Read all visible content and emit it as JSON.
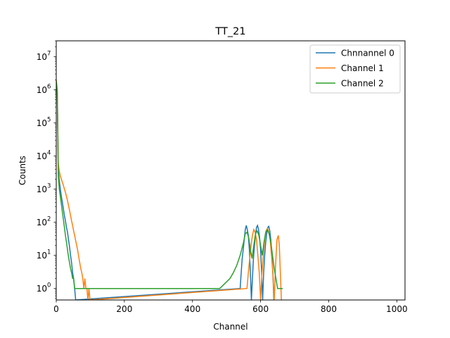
{
  "chart_data": {
    "type": "line",
    "title": "TT_21",
    "xlabel": "Channel",
    "ylabel": "Counts",
    "xlim": [
      0,
      1024
    ],
    "ylim": [
      0.45,
      30000000
    ],
    "yscale": "log",
    "x_ticks": [
      0,
      200,
      400,
      600,
      800,
      1000
    ],
    "x_tick_labels": [
      "0",
      "200",
      "400",
      "600",
      "800",
      "1000"
    ],
    "y_ticks": [
      1,
      10,
      100,
      1000,
      10000,
      100000,
      1000000,
      10000000
    ],
    "y_tick_labels": [
      "10",
      "10",
      "10",
      "10",
      "10",
      "10",
      "10",
      "10"
    ],
    "y_tick_exponents": [
      "0",
      "1",
      "2",
      "3",
      "4",
      "5",
      "6",
      "7"
    ],
    "grid": false,
    "legend_position": "top-right",
    "series": [
      {
        "name": "Chnnannel 0",
        "color": "#1f77b4",
        "points": [
          [
            0,
            1600000
          ],
          [
            3,
            900000
          ],
          [
            6,
            4000
          ],
          [
            9,
            1800
          ],
          [
            12,
            1000
          ],
          [
            15,
            600
          ],
          [
            18,
            400
          ],
          [
            21,
            250
          ],
          [
            24,
            160
          ],
          [
            27,
            110
          ],
          [
            30,
            70
          ],
          [
            33,
            50
          ],
          [
            36,
            30
          ],
          [
            39,
            18
          ],
          [
            42,
            10
          ],
          [
            45,
            6
          ],
          [
            48,
            3
          ],
          [
            51,
            2
          ],
          [
            54,
            1
          ],
          [
            57,
            0.45
          ],
          [
            540,
            1
          ],
          [
            543,
            3
          ],
          [
            546,
            8
          ],
          [
            549,
            15
          ],
          [
            552,
            30
          ],
          [
            555,
            60
          ],
          [
            558,
            80
          ],
          [
            561,
            60
          ],
          [
            564,
            40
          ],
          [
            567,
            15
          ],
          [
            570,
            3
          ],
          [
            573,
            0.45
          ],
          [
            576,
            2
          ],
          [
            579,
            8
          ],
          [
            582,
            20
          ],
          [
            585,
            40
          ],
          [
            588,
            70
          ],
          [
            591,
            80
          ],
          [
            594,
            60
          ],
          [
            597,
            35
          ],
          [
            600,
            15
          ],
          [
            603,
            3
          ],
          [
            606,
            0.45
          ],
          [
            609,
            3
          ],
          [
            612,
            10
          ],
          [
            615,
            25
          ],
          [
            618,
            45
          ],
          [
            621,
            70
          ],
          [
            624,
            75
          ],
          [
            627,
            55
          ],
          [
            630,
            30
          ],
          [
            633,
            10
          ],
          [
            636,
            3
          ],
          [
            639,
            0.45
          ]
        ]
      },
      {
        "name": "Channel 1",
        "color": "#ff7f0e",
        "points": [
          [
            0,
            2000000
          ],
          [
            3,
            1000000
          ],
          [
            6,
            6000
          ],
          [
            9,
            3500
          ],
          [
            12,
            2500
          ],
          [
            15,
            2000
          ],
          [
            18,
            1600
          ],
          [
            21,
            1300
          ],
          [
            24,
            1000
          ],
          [
            27,
            800
          ],
          [
            30,
            600
          ],
          [
            33,
            450
          ],
          [
            36,
            320
          ],
          [
            39,
            230
          ],
          [
            42,
            160
          ],
          [
            45,
            110
          ],
          [
            48,
            80
          ],
          [
            51,
            55
          ],
          [
            54,
            40
          ],
          [
            57,
            28
          ],
          [
            60,
            20
          ],
          [
            63,
            14
          ],
          [
            66,
            9
          ],
          [
            69,
            6
          ],
          [
            72,
            4
          ],
          [
            75,
            3
          ],
          [
            78,
            2
          ],
          [
            81,
            1
          ],
          [
            84,
            2
          ],
          [
            87,
            1
          ],
          [
            90,
            1
          ],
          [
            93,
            0.45
          ],
          [
            96,
            1
          ],
          [
            99,
            0.45
          ],
          [
            560,
            1
          ],
          [
            564,
            3
          ],
          [
            568,
            8
          ],
          [
            572,
            20
          ],
          [
            576,
            40
          ],
          [
            580,
            60
          ],
          [
            584,
            50
          ],
          [
            588,
            30
          ],
          [
            592,
            10
          ],
          [
            596,
            3
          ],
          [
            600,
            0.45
          ],
          [
            604,
            3
          ],
          [
            608,
            10
          ],
          [
            612,
            30
          ],
          [
            616,
            55
          ],
          [
            620,
            65
          ],
          [
            624,
            50
          ],
          [
            628,
            30
          ],
          [
            632,
            10
          ],
          [
            636,
            3
          ],
          [
            640,
            0.45
          ],
          [
            644,
            5
          ],
          [
            648,
            30
          ],
          [
            652,
            40
          ],
          [
            655,
            20
          ],
          [
            658,
            3
          ],
          [
            661,
            0.45
          ]
        ]
      },
      {
        "name": "Channel 2",
        "color": "#2ca02c",
        "points": [
          [
            0,
            1800000
          ],
          [
            3,
            800000
          ],
          [
            6,
            2500
          ],
          [
            9,
            1000
          ],
          [
            12,
            600
          ],
          [
            15,
            350
          ],
          [
            18,
            200
          ],
          [
            21,
            120
          ],
          [
            24,
            70
          ],
          [
            27,
            40
          ],
          [
            30,
            25
          ],
          [
            33,
            15
          ],
          [
            36,
            9
          ],
          [
            39,
            6
          ],
          [
            42,
            4
          ],
          [
            45,
            3
          ],
          [
            48,
            2
          ],
          [
            51,
            2
          ],
          [
            54,
            1
          ],
          [
            60,
            1
          ],
          [
            70,
            1
          ],
          [
            80,
            1
          ],
          [
            100,
            1
          ],
          [
            130,
            1
          ],
          [
            160,
            1
          ],
          [
            200,
            1
          ],
          [
            240,
            1
          ],
          [
            280,
            1
          ],
          [
            320,
            1
          ],
          [
            360,
            1
          ],
          [
            400,
            1
          ],
          [
            440,
            1
          ],
          [
            480,
            1
          ],
          [
            510,
            2
          ],
          [
            520,
            3
          ],
          [
            530,
            5
          ],
          [
            540,
            10
          ],
          [
            550,
            25
          ],
          [
            555,
            45
          ],
          [
            560,
            50
          ],
          [
            565,
            35
          ],
          [
            570,
            15
          ],
          [
            575,
            8
          ],
          [
            580,
            20
          ],
          [
            585,
            45
          ],
          [
            590,
            55
          ],
          [
            595,
            40
          ],
          [
            600,
            20
          ],
          [
            605,
            10
          ],
          [
            610,
            25
          ],
          [
            615,
            50
          ],
          [
            620,
            60
          ],
          [
            625,
            45
          ],
          [
            630,
            25
          ],
          [
            635,
            10
          ],
          [
            640,
            4
          ],
          [
            645,
            2
          ],
          [
            650,
            1
          ],
          [
            655,
            1
          ],
          [
            660,
            1
          ],
          [
            665,
            1
          ]
        ]
      }
    ]
  }
}
